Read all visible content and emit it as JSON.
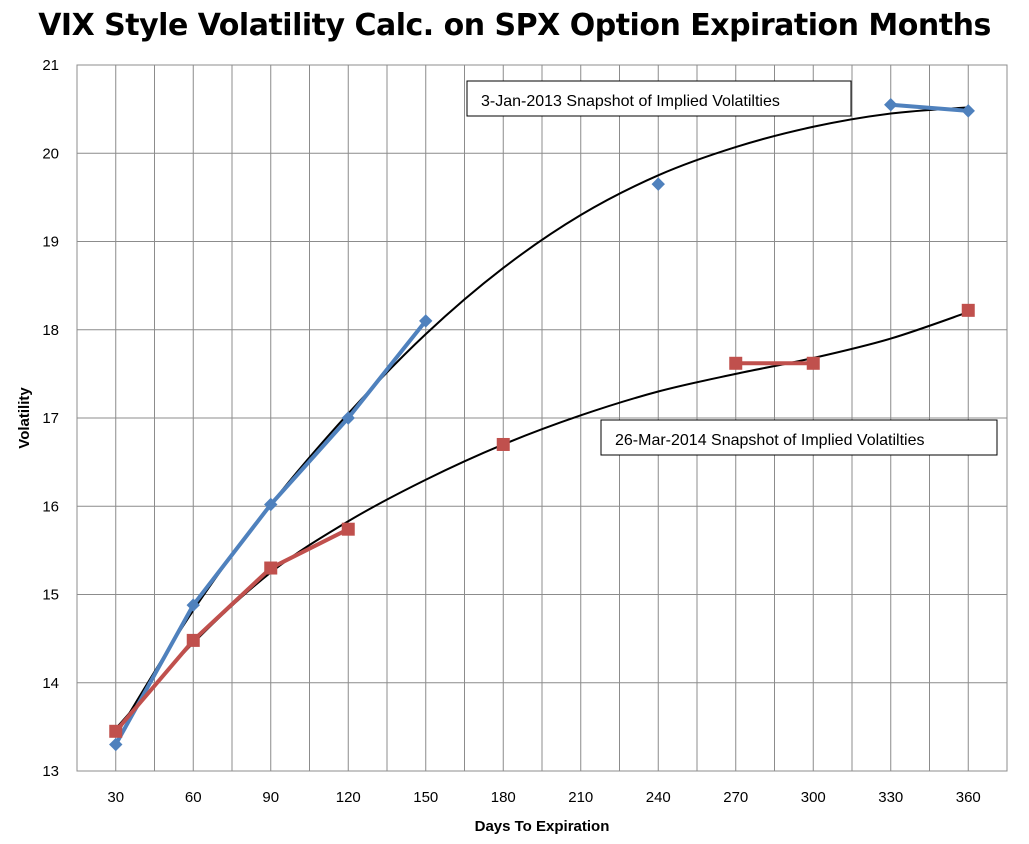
{
  "chart_data": {
    "type": "line",
    "title": "VIX Style Volatility Calc. on SPX Option Expiration Months",
    "xlabel": "Days To Expiration",
    "ylabel": "Volatility",
    "xlim": [
      15,
      375
    ],
    "ylim": [
      13,
      21
    ],
    "x_ticks": [
      30,
      60,
      90,
      120,
      150,
      180,
      210,
      240,
      270,
      300,
      330,
      360
    ],
    "y_ticks": [
      13,
      14,
      15,
      16,
      17,
      18,
      19,
      20,
      21
    ],
    "grid": true,
    "legend": "none",
    "series": [
      {
        "color": "#4F81BD",
        "marker": "diamond",
        "points": [
          [
            30,
            13.3
          ],
          [
            60,
            14.88
          ],
          [
            90,
            16.02
          ],
          [
            120,
            17.0
          ],
          [
            150,
            18.1
          ],
          [
            240,
            19.65
          ],
          [
            330,
            20.55
          ],
          [
            360,
            20.48
          ]
        ],
        "segments": [
          [
            0,
            1,
            2,
            3,
            4
          ],
          [
            6,
            7
          ]
        ]
      },
      {
        "color": "#C0504D",
        "marker": "square",
        "points": [
          [
            30,
            13.45
          ],
          [
            60,
            14.48
          ],
          [
            90,
            15.3
          ],
          [
            120,
            15.74
          ],
          [
            180,
            16.7
          ],
          [
            270,
            17.62
          ],
          [
            300,
            17.62
          ],
          [
            360,
            18.22
          ]
        ],
        "segments": [
          [
            0,
            1,
            2,
            3
          ],
          [
            5,
            6
          ]
        ]
      }
    ],
    "trendlines": [
      {
        "color": "#000000",
        "points": [
          [
            30,
            13.4
          ],
          [
            60,
            14.82
          ],
          [
            90,
            16.02
          ],
          [
            120,
            17.05
          ],
          [
            150,
            17.95
          ],
          [
            180,
            18.7
          ],
          [
            210,
            19.3
          ],
          [
            240,
            19.75
          ],
          [
            270,
            20.07
          ],
          [
            300,
            20.3
          ],
          [
            330,
            20.45
          ],
          [
            360,
            20.52
          ]
        ]
      },
      {
        "color": "#000000",
        "points": [
          [
            30,
            13.48
          ],
          [
            60,
            14.45
          ],
          [
            90,
            15.25
          ],
          [
            120,
            15.83
          ],
          [
            150,
            16.3
          ],
          [
            180,
            16.7
          ],
          [
            210,
            17.03
          ],
          [
            240,
            17.3
          ],
          [
            270,
            17.5
          ],
          [
            300,
            17.68
          ],
          [
            330,
            17.9
          ],
          [
            360,
            18.2
          ]
        ]
      }
    ],
    "annotations": [
      {
        "text": "3-Jan-2013 Snapshot of Implied Volatilties"
      },
      {
        "text": "26-Mar-2014 Snapshot of Implied Volatilties"
      }
    ]
  }
}
